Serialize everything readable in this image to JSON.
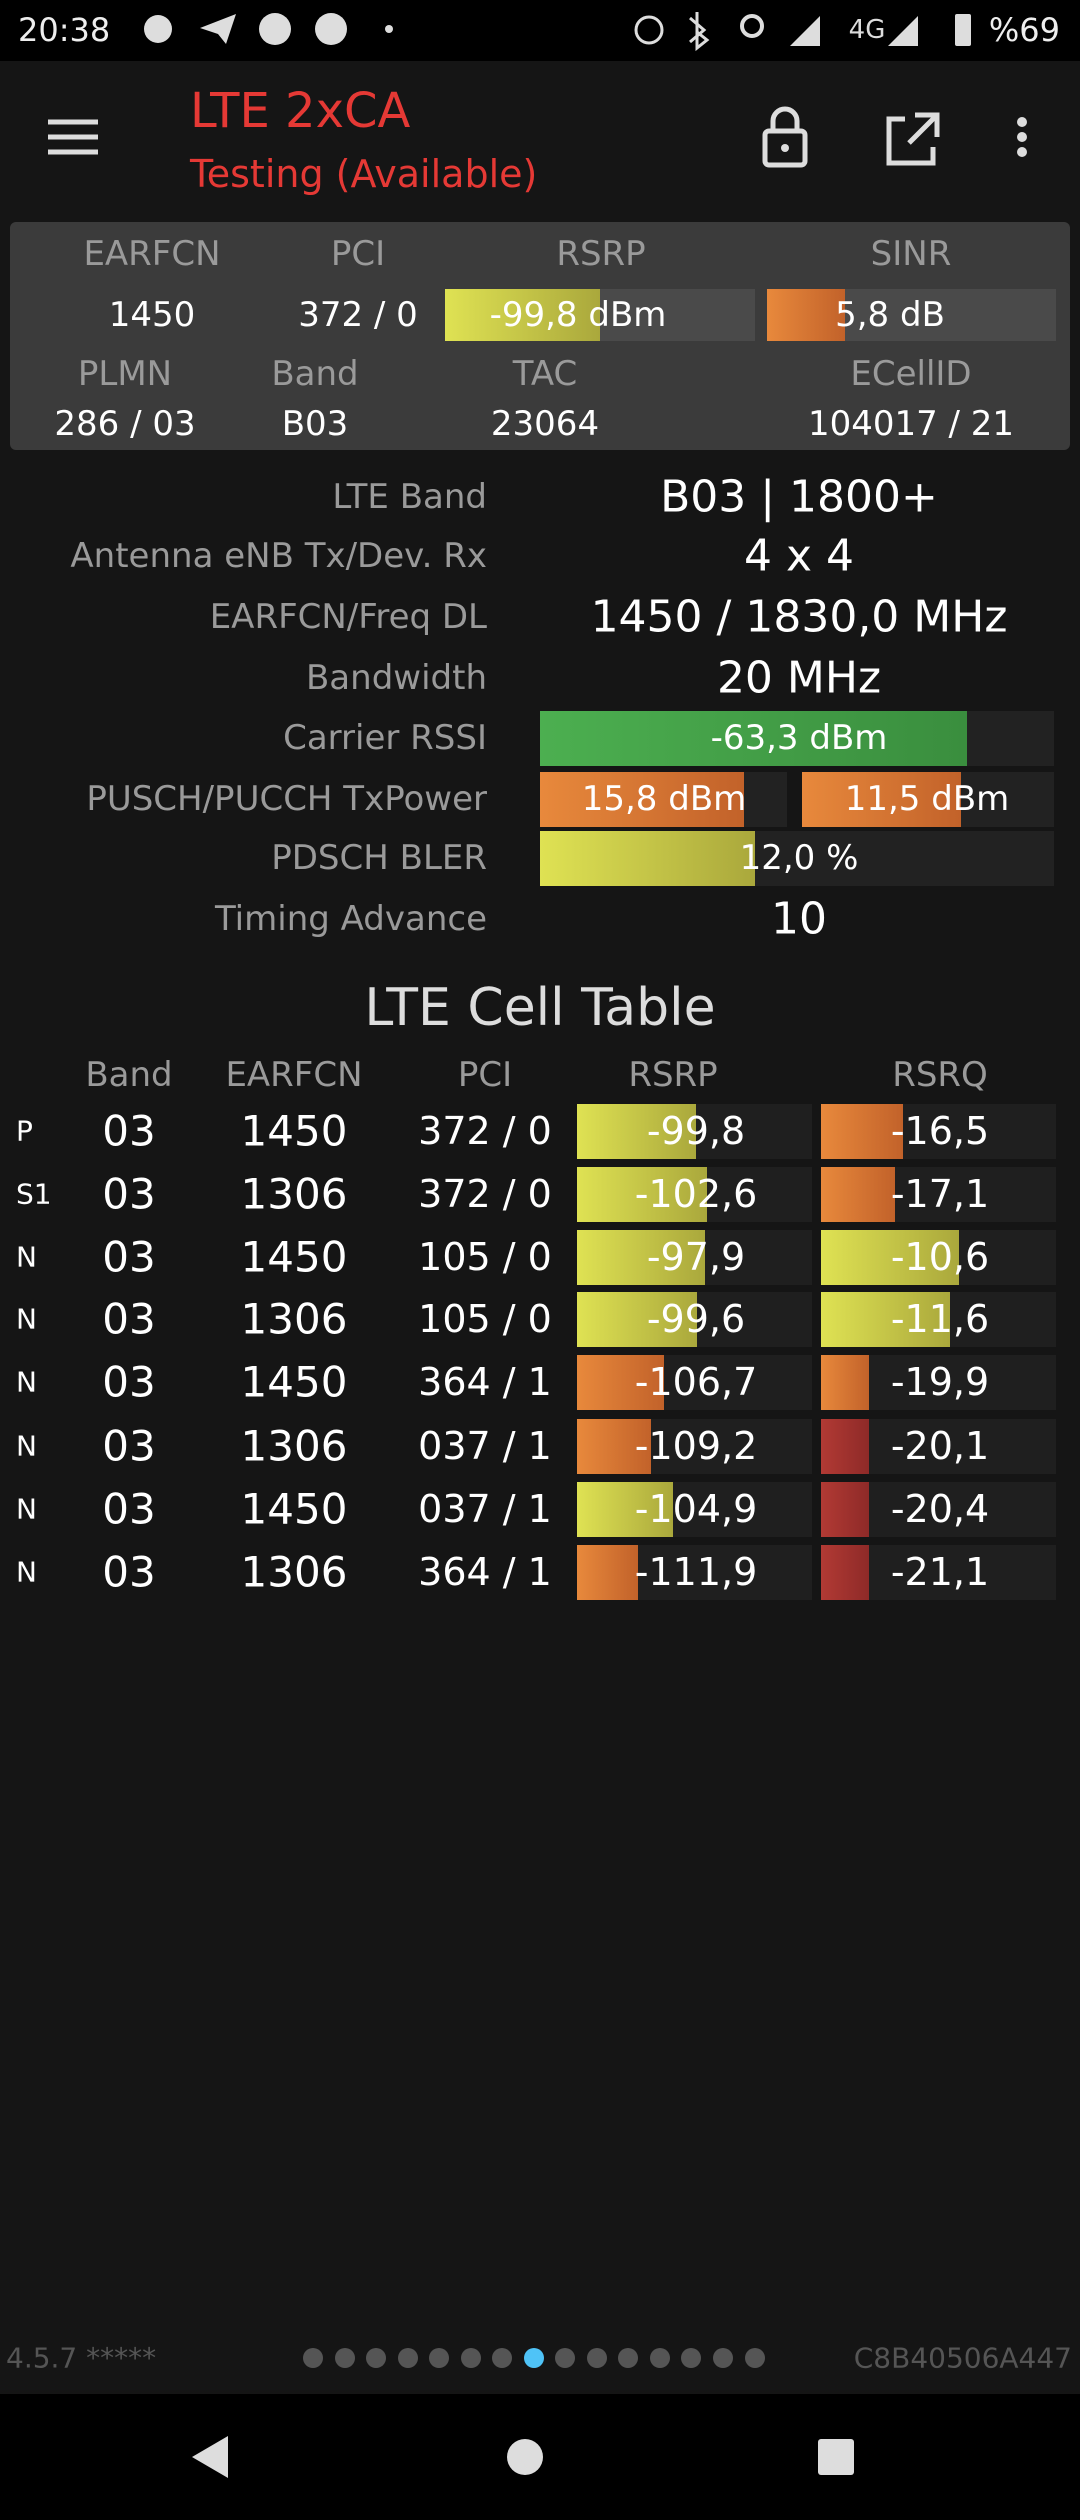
{
  "status_bar": {
    "time": "20:38",
    "network": "4G",
    "battery": "%69"
  },
  "app_bar": {
    "title": "LTE 2xCA",
    "subtitle": "Testing (Available)"
  },
  "summary": {
    "headers": [
      "EARFCN",
      "PCI",
      "RSRP",
      "SINR"
    ],
    "values": [
      "1450",
      "372 / 0",
      "-99,8 dBm",
      "5,8 dB"
    ],
    "headers2": [
      "PLMN",
      "Band",
      "TAC",
      "ECellID"
    ],
    "values2": [
      "286 / 03",
      "B03",
      "23064",
      "104017 / 21"
    ]
  },
  "details": [
    {
      "label": "LTE Band",
      "values": [
        "B03 | 1800+"
      ]
    },
    {
      "label": "Antenna eNB Tx/Dev. Rx",
      "values": [
        "4 x 4"
      ]
    },
    {
      "label": "EARFCN/Freq DL",
      "values": [
        "1450 / 1830,0 MHz"
      ]
    },
    {
      "label": "Bandwidth",
      "values": [
        "20 MHz"
      ]
    },
    {
      "label": "Carrier RSSI",
      "values": [
        "-63,3 dBm"
      ]
    },
    {
      "label": "PUSCH/PUCCH TxPower",
      "values": [
        "15,8 dBm",
        "11,5 dBm"
      ]
    },
    {
      "label": "PDSCH BLER",
      "values": [
        "12,0 %"
      ]
    },
    {
      "label": "Timing Advance",
      "values": [
        "10"
      ]
    }
  ],
  "cell_table": {
    "title": "LTE Cell Table",
    "columns": [
      "Band",
      "EARFCN",
      "PCI",
      "RSRP",
      "RSRQ"
    ],
    "rows": [
      [
        "P",
        "03",
        "1450",
        "372 / 0",
        "-99,8",
        "-16,5"
      ],
      [
        "S1",
        "03",
        "1306",
        "372 / 0",
        "-102,6",
        "-17,1"
      ],
      [
        "N",
        "03",
        "1450",
        "105 / 0",
        "-97,9",
        "-10,6"
      ],
      [
        "N",
        "03",
        "1306",
        "105 / 0",
        "-99,6",
        "-11,6"
      ],
      [
        "N",
        "03",
        "1450",
        "364 / 1",
        "-106,7",
        "-19,9"
      ],
      [
        "N",
        "03",
        "1306",
        "037 / 1",
        "-109,2",
        "-20,1"
      ],
      [
        "N",
        "03",
        "1450",
        "037 / 1",
        "-104,9",
        "-20,4"
      ],
      [
        "N",
        "03",
        "1306",
        "364 / 1",
        "-111,9",
        "-21,1"
      ]
    ]
  },
  "footer": {
    "version": "4.5.7 *****",
    "device_id": "C8B40506A447"
  }
}
